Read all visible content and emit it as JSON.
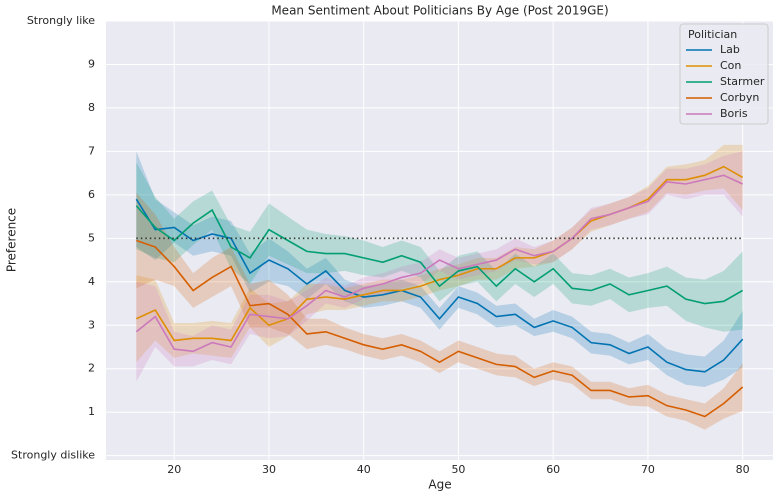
{
  "chart_data": {
    "type": "line",
    "title": "Mean Sentiment About Politicians By Age (Post 2019GE)",
    "x_label": "Age",
    "y_label": "Preference",
    "x": [
      16,
      18,
      20,
      22,
      24,
      26,
      28,
      30,
      32,
      34,
      36,
      38,
      40,
      42,
      44,
      46,
      48,
      50,
      52,
      54,
      56,
      58,
      60,
      62,
      64,
      66,
      68,
      70,
      72,
      74,
      76,
      78,
      80
    ],
    "xlim": [
      12.8,
      83.2
    ],
    "xticks": [
      20,
      30,
      40,
      50,
      60,
      70,
      80
    ],
    "ylim": [
      -0.1,
      10
    ],
    "yticks": [
      {
        "value": 0,
        "label": "Strongly dislike"
      },
      1,
      2,
      3,
      4,
      5,
      6,
      7,
      8,
      9,
      {
        "value": 10,
        "label": "Strongly like"
      }
    ],
    "grid": true,
    "reference_line": 5,
    "reference_color": "#333333",
    "legend_title": "Politician",
    "legend_position": "upper right",
    "series": [
      {
        "name": "Lab",
        "color": "#0173b2",
        "values": [
          5.9,
          5.2,
          5.25,
          4.95,
          5.1,
          5.0,
          4.2,
          4.5,
          4.3,
          3.95,
          4.25,
          3.8,
          3.65,
          3.7,
          3.8,
          3.65,
          3.15,
          3.65,
          3.5,
          3.2,
          3.25,
          2.95,
          3.1,
          2.95,
          2.6,
          2.55,
          2.35,
          2.5,
          2.15,
          1.98,
          1.93,
          2.2,
          2.68
        ],
        "ci": [
          1.1,
          0.7,
          0.35,
          0.35,
          0.4,
          0.4,
          0.45,
          0.5,
          0.4,
          0.35,
          0.3,
          0.25,
          0.25,
          0.25,
          0.25,
          0.25,
          0.25,
          0.25,
          0.25,
          0.25,
          0.25,
          0.2,
          0.25,
          0.25,
          0.25,
          0.25,
          0.25,
          0.3,
          0.3,
          0.35,
          0.35,
          0.45,
          0.65
        ]
      },
      {
        "name": "Con",
        "color": "#de8f05",
        "values": [
          3.15,
          3.35,
          2.65,
          2.7,
          2.7,
          2.65,
          3.4,
          3.0,
          3.15,
          3.6,
          3.65,
          3.6,
          3.7,
          3.8,
          3.8,
          3.9,
          4.05,
          4.15,
          4.3,
          4.3,
          4.55,
          4.55,
          4.7,
          5.0,
          5.4,
          5.55,
          5.7,
          5.9,
          6.35,
          6.35,
          6.45,
          6.65,
          6.4
        ],
        "ci": [
          1.0,
          0.7,
          0.4,
          0.35,
          0.4,
          0.4,
          0.45,
          0.5,
          0.4,
          0.35,
          0.3,
          0.25,
          0.25,
          0.25,
          0.25,
          0.25,
          0.25,
          0.25,
          0.25,
          0.25,
          0.25,
          0.2,
          0.25,
          0.25,
          0.25,
          0.25,
          0.25,
          0.3,
          0.3,
          0.35,
          0.35,
          0.5,
          0.75
        ]
      },
      {
        "name": "Starmer",
        "color": "#029e73",
        "values": [
          5.75,
          5.25,
          4.95,
          5.35,
          5.65,
          4.8,
          4.55,
          5.2,
          4.95,
          4.7,
          4.65,
          4.65,
          4.55,
          4.45,
          4.6,
          4.45,
          3.9,
          4.25,
          4.35,
          3.9,
          4.3,
          4.0,
          4.3,
          3.85,
          3.8,
          3.95,
          3.7,
          3.8,
          3.9,
          3.6,
          3.5,
          3.55,
          3.8
        ],
        "ci": [
          1.0,
          0.7,
          0.5,
          0.5,
          0.45,
          0.5,
          0.6,
          0.6,
          0.55,
          0.5,
          0.45,
          0.4,
          0.4,
          0.35,
          0.35,
          0.35,
          0.35,
          0.35,
          0.35,
          0.35,
          0.35,
          0.35,
          0.35,
          0.35,
          0.35,
          0.35,
          0.4,
          0.4,
          0.45,
          0.5,
          0.55,
          0.7,
          0.9
        ]
      },
      {
        "name": "Corbyn",
        "color": "#d55e00",
        "values": [
          4.95,
          4.8,
          4.35,
          3.8,
          4.1,
          4.35,
          3.45,
          3.5,
          3.25,
          2.8,
          2.85,
          2.7,
          2.55,
          2.45,
          2.55,
          2.4,
          2.15,
          2.4,
          2.25,
          2.1,
          2.05,
          1.8,
          1.95,
          1.85,
          1.5,
          1.5,
          1.35,
          1.38,
          1.15,
          1.05,
          0.9,
          1.2,
          1.58
        ],
        "ci": [
          1.1,
          0.75,
          0.45,
          0.4,
          0.45,
          0.45,
          0.5,
          0.55,
          0.45,
          0.35,
          0.3,
          0.25,
          0.25,
          0.25,
          0.25,
          0.25,
          0.25,
          0.25,
          0.25,
          0.25,
          0.25,
          0.2,
          0.2,
          0.2,
          0.2,
          0.2,
          0.2,
          0.25,
          0.25,
          0.25,
          0.3,
          0.35,
          0.55
        ]
      },
      {
        "name": "Boris",
        "color": "#cc78bc",
        "values": [
          2.85,
          3.2,
          2.45,
          2.4,
          2.6,
          2.5,
          3.25,
          3.2,
          3.15,
          3.45,
          3.8,
          3.65,
          3.85,
          3.95,
          4.1,
          4.2,
          4.5,
          4.3,
          4.4,
          4.5,
          4.75,
          4.6,
          4.7,
          5.0,
          5.45,
          5.55,
          5.7,
          5.85,
          6.3,
          6.25,
          6.35,
          6.45,
          6.25
        ],
        "ci": [
          1.15,
          0.7,
          0.4,
          0.35,
          0.4,
          0.4,
          0.45,
          0.5,
          0.4,
          0.35,
          0.3,
          0.25,
          0.25,
          0.25,
          0.25,
          0.25,
          0.25,
          0.25,
          0.25,
          0.25,
          0.25,
          0.2,
          0.25,
          0.25,
          0.25,
          0.25,
          0.25,
          0.3,
          0.3,
          0.35,
          0.35,
          0.45,
          0.75
        ]
      }
    ]
  }
}
